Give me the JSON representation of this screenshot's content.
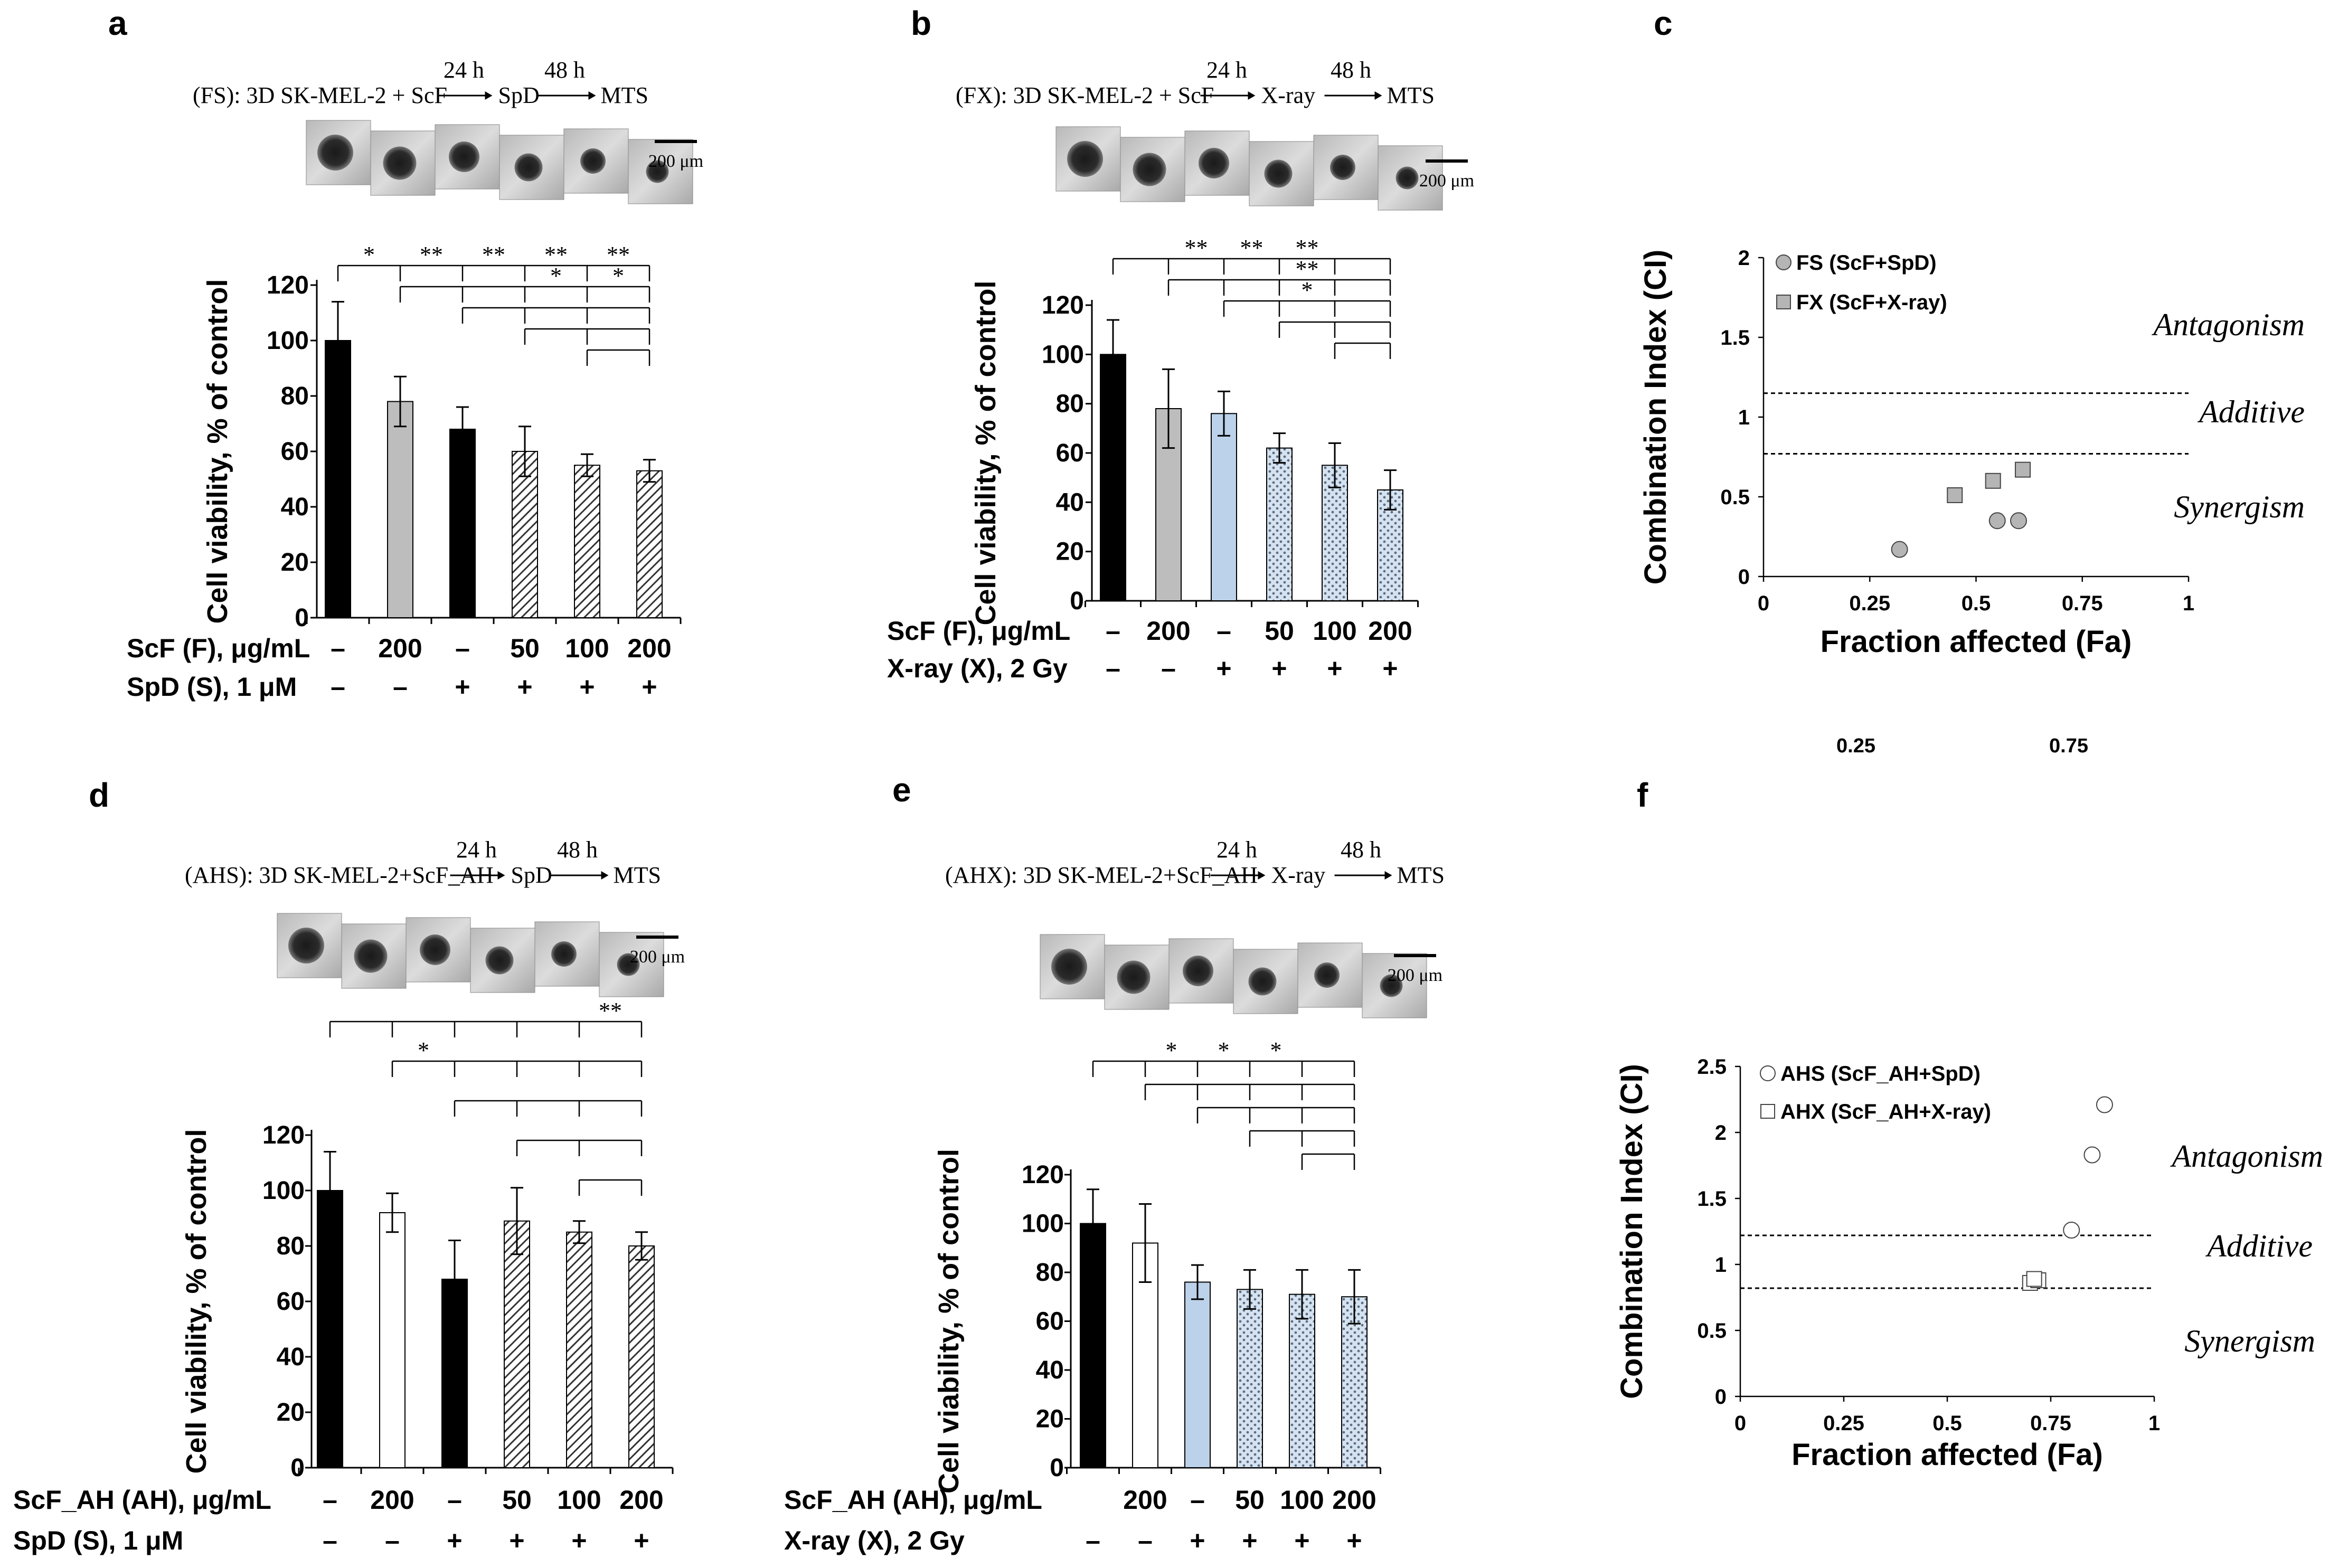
{
  "panel_letters": [
    "a",
    "b",
    "c",
    "d",
    "e",
    "f"
  ],
  "colors": {
    "black": "#000000",
    "grey": "#bdbdbd",
    "light_blue": "#bcd2ea",
    "white": "#ffffff",
    "marker_grey": "#b5b5b5"
  },
  "extra_ticks": [
    "0.25",
    "0.75"
  ],
  "chart_data": [
    {
      "id": "a",
      "type": "bar",
      "protocol": {
        "prefix": "(FS): 3D SK-MEL-2 + ScF",
        "t1": "24 h",
        "mid": "SpD",
        "t2": "48 h",
        "end": "MTS"
      },
      "scale_bar": "200 μm",
      "ylabel": "Cell viability, % of control",
      "ylim": [
        0,
        120
      ],
      "yticks": [
        "0",
        "20",
        "40",
        "60",
        "80",
        "100",
        "120"
      ],
      "values": [
        100,
        78,
        68,
        60,
        55,
        53
      ],
      "errors": [
        14,
        9,
        8,
        9,
        4,
        4
      ],
      "fills": [
        "black",
        "grey",
        "black",
        "hatch",
        "hatch",
        "hatch"
      ],
      "row1_label": "ScF (F), μg/mL",
      "row1": [
        "–",
        "200",
        "–",
        "50",
        "100",
        "200"
      ],
      "row2_label": "SpD (S), 1 μM",
      "row2": [
        "–",
        "–",
        "+",
        "+",
        "+",
        "+"
      ],
      "significance": [
        {
          "from": 0,
          "stars": [
            "*",
            "**",
            "**",
            "**",
            "**"
          ]
        },
        {
          "from": 1,
          "stars": [
            "",
            "",
            "*",
            "*"
          ]
        },
        {
          "from": 2,
          "stars": [
            "",
            "",
            ""
          ]
        },
        {
          "from": 3,
          "stars": [
            "",
            ""
          ]
        },
        {
          "from": 4,
          "stars": [
            ""
          ]
        }
      ]
    },
    {
      "id": "b",
      "type": "bar",
      "protocol": {
        "prefix": "(FX): 3D SK-MEL-2 + ScF",
        "t1": "24 h",
        "mid": "X-ray",
        "t2": "48 h",
        "end": "MTS"
      },
      "scale_bar": "200 μm",
      "ylabel": "Cell viability, % of control",
      "ylim": [
        0,
        120
      ],
      "yticks": [
        "0",
        "20",
        "40",
        "60",
        "80",
        "100",
        "120"
      ],
      "values": [
        100,
        78,
        76,
        62,
        55,
        45
      ],
      "errors": [
        14,
        16,
        9,
        6,
        9,
        8
      ],
      "fills": [
        "black",
        "grey",
        "lightblue",
        "dots",
        "dots",
        "dots"
      ],
      "row1_label": "ScF (F), μg/mL",
      "row1": [
        "–",
        "200",
        "–",
        "50",
        "100",
        "200"
      ],
      "row2_label": "X-ray (X), 2 Gy",
      "row2": [
        "–",
        "–",
        "+",
        "+",
        "+",
        "+"
      ],
      "significance": [
        {
          "from": 0,
          "stars": [
            "",
            "**",
            "**",
            "**"
          ]
        },
        {
          "from": 1,
          "stars": [
            "",
            "",
            "**"
          ]
        },
        {
          "from": 2,
          "stars": [
            "",
            "*"
          ]
        },
        {
          "from": 3,
          "stars": [
            ""
          ]
        },
        {
          "from": 4,
          "stars": [
            ""
          ]
        }
      ]
    },
    {
      "id": "c",
      "type": "scatter",
      "xlabel": "Fraction affected (Fa)",
      "ylabel": "Combination Index (CI)",
      "xlim": [
        0,
        1
      ],
      "ylim": [
        0,
        2
      ],
      "xticks": [
        "0",
        "0.25",
        "0.5",
        "0.75",
        "1"
      ],
      "yticks": [
        "0",
        "0.5",
        "1",
        "1.5",
        "2"
      ],
      "thresholds": [
        1.15,
        0.77
      ],
      "regions": [
        "Antagonism",
        "Additive",
        "Synergism"
      ],
      "series": [
        {
          "name": "FS (ScF+SpD)",
          "marker": "circle-filled",
          "points": [
            [
              0.32,
              0.17
            ],
            [
              0.55,
              0.35
            ],
            [
              0.6,
              0.35
            ]
          ]
        },
        {
          "name": "FX (ScF+X-ray)",
          "marker": "square-filled",
          "points": [
            [
              0.45,
              0.51
            ],
            [
              0.54,
              0.6
            ],
            [
              0.61,
              0.67
            ]
          ]
        }
      ]
    },
    {
      "id": "d",
      "type": "bar",
      "protocol": {
        "prefix": "(AHS): 3D SK-MEL-2+ScF_AH",
        "t1": "24 h",
        "mid": "SpD",
        "t2": "48 h",
        "end": "MTS"
      },
      "scale_bar": "200 μm",
      "ylabel": "Cell viability, % of control",
      "ylim": [
        0,
        120
      ],
      "yticks": [
        "0",
        "20",
        "40",
        "60",
        "80",
        "100",
        "120"
      ],
      "values": [
        100,
        92,
        68,
        89,
        85,
        80
      ],
      "errors": [
        14,
        7,
        14,
        12,
        4,
        5
      ],
      "fills": [
        "black",
        "white",
        "black",
        "hatch",
        "hatch",
        "hatch"
      ],
      "row1_label": "ScF_AH (AH), μg/mL",
      "row1": [
        "–",
        "200",
        "–",
        "50",
        "100",
        "200"
      ],
      "row2_label": "SpD (S), 1 μM",
      "row2": [
        "–",
        "–",
        "+",
        "+",
        "+",
        "+"
      ],
      "significance": [
        {
          "from": 0,
          "stars": [
            "",
            "",
            "",
            "",
            "**"
          ]
        },
        {
          "from": 1,
          "stars": [
            "*",
            "",
            "",
            ""
          ]
        },
        {
          "from": 2,
          "stars": [
            "",
            "",
            ""
          ]
        },
        {
          "from": 3,
          "stars": [
            "",
            ""
          ]
        },
        {
          "from": 4,
          "stars": [
            ""
          ]
        }
      ]
    },
    {
      "id": "e",
      "type": "bar",
      "protocol": {
        "prefix": "(AHX): 3D SK-MEL-2+ScF_AH",
        "t1": "24 h",
        "mid": "X-ray",
        "t2": "48 h",
        "end": "MTS"
      },
      "scale_bar": "200 μm",
      "ylabel": "Cell viability, % of control",
      "ylim": [
        0,
        120
      ],
      "yticks": [
        "0",
        "20",
        "40",
        "60",
        "80",
        "100",
        "120"
      ],
      "values": [
        100,
        92,
        76,
        73,
        71,
        70
      ],
      "errors": [
        14,
        16,
        7,
        8,
        10,
        11
      ],
      "fills": [
        "black",
        "white",
        "lightblue",
        "dots",
        "dots",
        "dots"
      ],
      "row1_label": "ScF_AH (AH), μg/mL",
      "row1": [
        "",
        "200",
        "–",
        "50",
        "100",
        "200"
      ],
      "row2_label": "X-ray (X), 2 Gy",
      "row2": [
        "–",
        "–",
        "+",
        "+",
        "+",
        "+"
      ],
      "significance": [
        {
          "from": 0,
          "stars": [
            "",
            "*",
            "*",
            "*",
            ""
          ]
        },
        {
          "from": 1,
          "stars": [
            "",
            "",
            "",
            ""
          ]
        },
        {
          "from": 2,
          "stars": [
            "",
            "",
            ""
          ]
        },
        {
          "from": 3,
          "stars": [
            "",
            ""
          ]
        },
        {
          "from": 4,
          "stars": [
            ""
          ]
        }
      ]
    },
    {
      "id": "f",
      "type": "scatter",
      "xlabel": "Fraction affected (Fa)",
      "ylabel": "Combination Index (CI)",
      "xlim": [
        0,
        1
      ],
      "ylim": [
        0,
        2.5
      ],
      "xticks": [
        "0",
        "0.25",
        "0.5",
        "0.75",
        "1"
      ],
      "yticks": [
        "0",
        "0.5",
        "1",
        "1.5",
        "2",
        "2.5"
      ],
      "thresholds": [
        1.22,
        0.82
      ],
      "regions": [
        "Antagonism",
        "Additive",
        "Synergism"
      ],
      "series": [
        {
          "name": "AHS (ScF_AH+SpD)",
          "marker": "circle-open",
          "points": [
            [
              0.8,
              1.26
            ],
            [
              0.85,
              1.83
            ],
            [
              0.88,
              2.21
            ]
          ]
        },
        {
          "name": "AHX (ScF_AH+X-ray)",
          "marker": "square-open",
          "points": [
            [
              0.7,
              0.86
            ],
            [
              0.72,
              0.88
            ],
            [
              0.71,
              0.89
            ]
          ]
        }
      ]
    }
  ]
}
